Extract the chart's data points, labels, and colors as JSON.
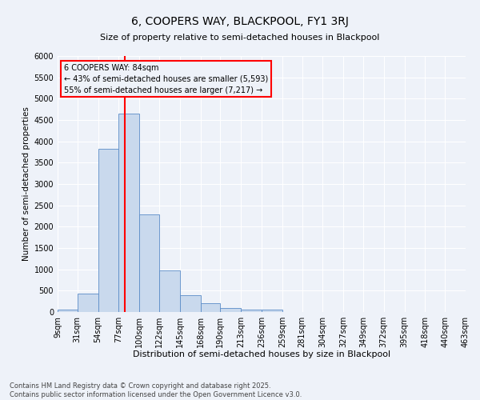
{
  "title": "6, COOPERS WAY, BLACKPOOL, FY1 3RJ",
  "subtitle": "Size of property relative to semi-detached houses in Blackpool",
  "xlabel": "Distribution of semi-detached houses by size in Blackpool",
  "ylabel": "Number of semi-detached properties",
  "footer_line1": "Contains HM Land Registry data © Crown copyright and database right 2025.",
  "footer_line2": "Contains public sector information licensed under the Open Government Licence v3.0.",
  "annotation_title": "6 COOPERS WAY: 84sqm",
  "annotation_line1": "← 43% of semi-detached houses are smaller (5,593)",
  "annotation_line2": "55% of semi-detached houses are larger (7,217) →",
  "property_line_x": 84,
  "bar_color": "#c9d9ed",
  "bar_edge_color": "#5b8cc8",
  "line_color": "red",
  "background_color": "#eef2f9",
  "grid_color": "#ffffff",
  "bin_edges": [
    9,
    31,
    54,
    77,
    100,
    122,
    145,
    168,
    190,
    213,
    236,
    259,
    281,
    304,
    327,
    349,
    372,
    395,
    418,
    440,
    463
  ],
  "bin_labels": [
    "9sqm",
    "31sqm",
    "54sqm",
    "77sqm",
    "100sqm",
    "122sqm",
    "145sqm",
    "168sqm",
    "190sqm",
    "213sqm",
    "236sqm",
    "259sqm",
    "281sqm",
    "304sqm",
    "327sqm",
    "349sqm",
    "372sqm",
    "395sqm",
    "418sqm",
    "440sqm",
    "463sqm"
  ],
  "counts": [
    50,
    430,
    3820,
    4650,
    2280,
    980,
    400,
    200,
    100,
    65,
    60,
    0,
    0,
    0,
    0,
    0,
    0,
    0,
    0,
    0
  ],
  "ylim": [
    0,
    6000
  ],
  "yticks": [
    0,
    500,
    1000,
    1500,
    2000,
    2500,
    3000,
    3500,
    4000,
    4500,
    5000,
    5500,
    6000
  ],
  "title_fontsize": 10,
  "subtitle_fontsize": 8,
  "ylabel_fontsize": 7.5,
  "xlabel_fontsize": 8,
  "tick_fontsize": 7,
  "annotation_fontsize": 7,
  "footer_fontsize": 6
}
